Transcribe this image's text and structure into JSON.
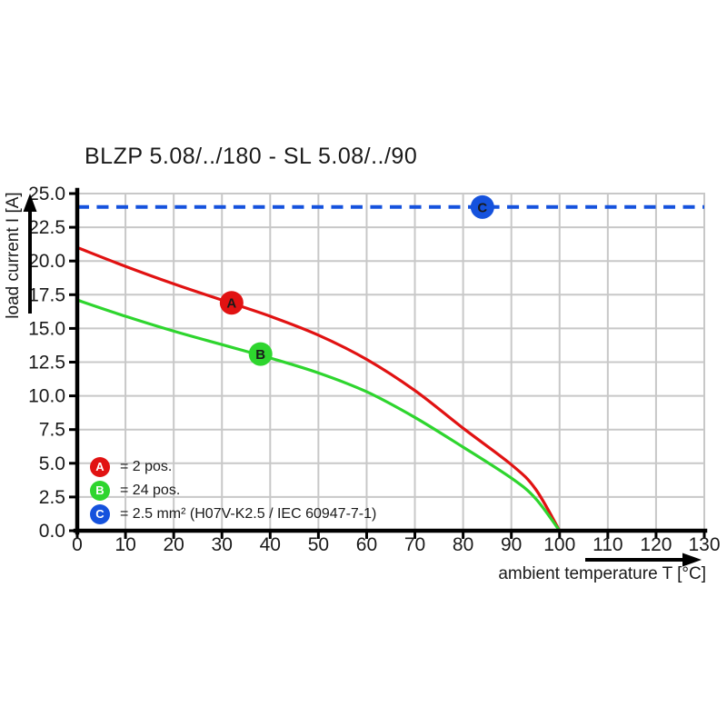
{
  "colors": {
    "grid": "#c8c8c8",
    "axis": "#000000",
    "red": "#e11212",
    "green": "#2ed52e",
    "blue": "#1552dd",
    "background": "#ffffff"
  },
  "chart_data": {
    "type": "line",
    "title": "BLZP 5.08/../180 - SL 5.08/../90",
    "xlabel": "ambient temperature T [°C]",
    "ylabel": "load current I [A]",
    "xlim": [
      0,
      130
    ],
    "ylim": [
      0,
      25
    ],
    "grid": true,
    "legend_position": "inside bottom-left",
    "x_ticks": [
      {
        "value": 0,
        "label": "0"
      },
      {
        "value": 10,
        "label": "10"
      },
      {
        "value": 20,
        "label": "20"
      },
      {
        "value": 30,
        "label": "30"
      },
      {
        "value": 40,
        "label": "40"
      },
      {
        "value": 50,
        "label": "50"
      },
      {
        "value": 60,
        "label": "60"
      },
      {
        "value": 70,
        "label": "70"
      },
      {
        "value": 80,
        "label": "80"
      },
      {
        "value": 90,
        "label": "90"
      },
      {
        "value": 100,
        "label": "100"
      },
      {
        "value": 110,
        "label": "110"
      },
      {
        "value": 120,
        "label": "120"
      },
      {
        "value": 130,
        "label": "130"
      }
    ],
    "y_ticks": [
      {
        "value": 0,
        "label": "0.0"
      },
      {
        "value": 2.5,
        "label": "2.5"
      },
      {
        "value": 5,
        "label": "5.0"
      },
      {
        "value": 7.5,
        "label": "7.5"
      },
      {
        "value": 10,
        "label": "10.0"
      },
      {
        "value": 12.5,
        "label": "12.5"
      },
      {
        "value": 15,
        "label": "15.0"
      },
      {
        "value": 17.5,
        "label": "17.5"
      },
      {
        "value": 20,
        "label": "20.0"
      },
      {
        "value": 22.5,
        "label": "22.5"
      },
      {
        "value": 25,
        "label": "25.0"
      }
    ],
    "series": [
      {
        "id": "A",
        "label": "2 pos.",
        "color": "#e11212",
        "line_style": "solid",
        "marker": {
          "letter": "A",
          "x": 32,
          "y": 16.9
        },
        "points": [
          [
            0,
            21.0
          ],
          [
            10,
            19.6
          ],
          [
            20,
            18.3
          ],
          [
            30,
            17.1
          ],
          [
            40,
            15.9
          ],
          [
            50,
            14.5
          ],
          [
            60,
            12.7
          ],
          [
            70,
            10.4
          ],
          [
            80,
            7.6
          ],
          [
            90,
            4.9
          ],
          [
            95,
            3.1
          ],
          [
            100,
            0
          ]
        ]
      },
      {
        "id": "B",
        "label": "24 pos.",
        "color": "#2ed52e",
        "line_style": "solid",
        "marker": {
          "letter": "B",
          "x": 38,
          "y": 13.1
        },
        "points": [
          [
            0,
            17.1
          ],
          [
            10,
            15.9
          ],
          [
            20,
            14.8
          ],
          [
            30,
            13.8
          ],
          [
            40,
            12.8
          ],
          [
            50,
            11.7
          ],
          [
            60,
            10.3
          ],
          [
            70,
            8.4
          ],
          [
            80,
            6.2
          ],
          [
            90,
            3.9
          ],
          [
            95,
            2.4
          ],
          [
            100,
            0
          ]
        ]
      },
      {
        "id": "C",
        "label": "2.5 mm² (H07V-K2.5 / IEC 60947-7-1)",
        "color": "#1552dd",
        "line_style": "dashed",
        "marker": {
          "letter": "C",
          "x": 84,
          "y": 24
        },
        "points": [
          [
            0,
            24
          ],
          [
            130,
            24
          ]
        ]
      }
    ],
    "legend": [
      {
        "letter": "A",
        "color": "#e11212",
        "text": "= 2 pos."
      },
      {
        "letter": "B",
        "color": "#2ed52e",
        "text": "= 24 pos."
      },
      {
        "letter": "C",
        "color": "#1552dd",
        "text": "= 2.5 mm² (H07V-K2.5 / IEC 60947-7-1)"
      }
    ]
  }
}
